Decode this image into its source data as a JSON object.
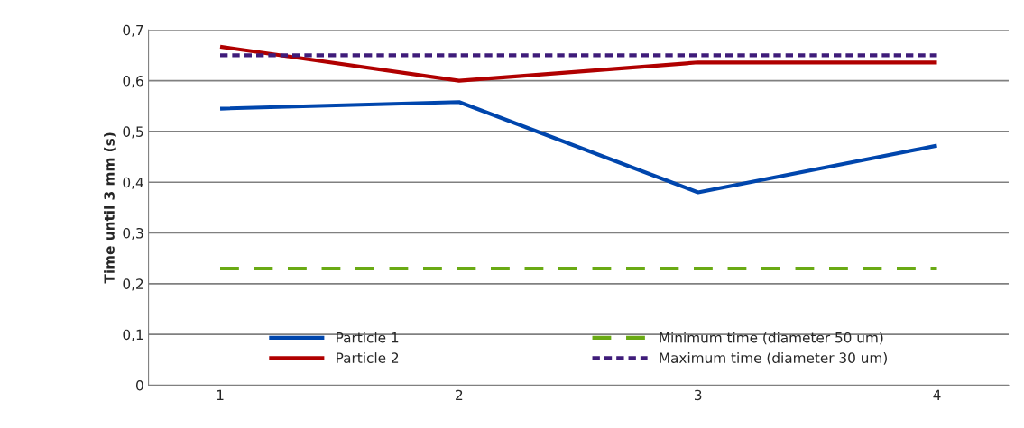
{
  "chart_data": {
    "type": "line",
    "ylabel": "Time until 3 mm (s)",
    "categories": [
      "1",
      "2",
      "3",
      "4"
    ],
    "series": [
      {
        "name": "Particle 1",
        "color": "#0046ad",
        "values": [
          0.545,
          0.558,
          0.38,
          0.472
        ],
        "line_style": "solid"
      },
      {
        "name": "Particle 2",
        "color": "#b00000",
        "values": [
          0.667,
          0.6,
          0.636,
          0.636
        ],
        "line_style": "solid"
      },
      {
        "name": "Minimum time (diameter 50 um)",
        "color": "#6aaa14",
        "values": [
          0.23,
          0.23,
          0.23,
          0.23
        ],
        "line_style": "dashed"
      },
      {
        "name": "Maximum time (diameter 30 um)",
        "color": "#3f1c7a",
        "values": [
          0.65,
          0.65,
          0.65,
          0.65
        ],
        "line_style": "dotted"
      }
    ],
    "ylim": [
      0,
      0.7
    ],
    "yticks": [
      {
        "value": 0,
        "label": "0"
      },
      {
        "value": 0.1,
        "label": "0,1"
      },
      {
        "value": 0.2,
        "label": "0,2"
      },
      {
        "value": 0.3,
        "label": "0,3"
      },
      {
        "value": 0.4,
        "label": "0,4"
      },
      {
        "value": 0.5,
        "label": "0,5"
      },
      {
        "value": 0.6,
        "label": "0,6"
      },
      {
        "value": 0.7,
        "label": "0,7"
      }
    ],
    "grid": "y",
    "legend": "bottom"
  }
}
